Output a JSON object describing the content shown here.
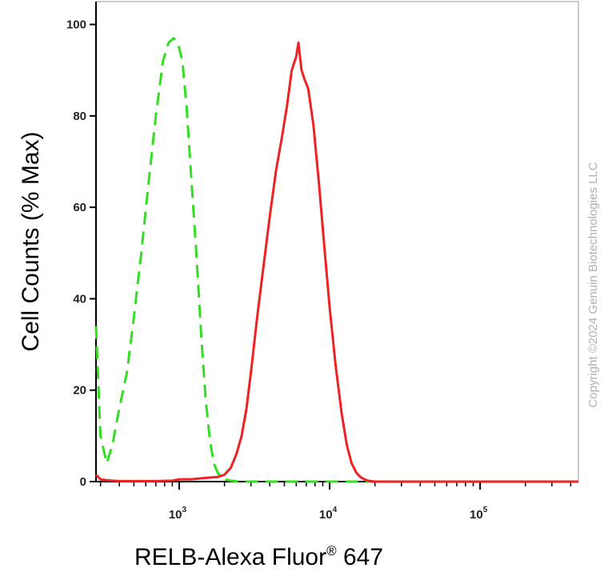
{
  "chart_data": {
    "type": "line",
    "xlabel": "RELB-Alexa Fluor",
    "xlabel_superscript": "®",
    "xlabel_suffix": " 647",
    "ylabel": "Cell Counts (% Max)",
    "x_scale": "log",
    "xlim": [
      280,
      450000
    ],
    "ylim": [
      0,
      105
    ],
    "y_ticks": [
      "0",
      "20",
      "40",
      "60",
      "80",
      "100"
    ],
    "x_ticks": [
      {
        "base": "10",
        "exp": "3",
        "value": 1000
      },
      {
        "base": "10",
        "exp": "4",
        "value": 10000
      },
      {
        "base": "10",
        "exp": "5",
        "value": 100000
      }
    ],
    "grid": false,
    "copyright": "Copyright ©2024 Genuin Biotechnologies LLC",
    "series": [
      {
        "color": "#33dd22",
        "style": "dashed",
        "x": [
          280,
          300,
          330,
          360,
          400,
          450,
          500,
          560,
          620,
          700,
          780,
          850,
          920,
          980,
          1050,
          1120,
          1200,
          1300,
          1400,
          1500,
          1600,
          1700,
          1800,
          1900,
          2000,
          2200,
          2500,
          3000,
          5000,
          10000,
          20000,
          50000,
          100000,
          450000
        ],
        "y": [
          34,
          10,
          4,
          8,
          16,
          24,
          36,
          50,
          64,
          80,
          92,
          96,
          97,
          96,
          92,
          82,
          67,
          50,
          32,
          18,
          9,
          4,
          2,
          1,
          0.5,
          0.2,
          0,
          0,
          0,
          0,
          0,
          0,
          0,
          0
        ]
      },
      {
        "color": "#ee2222",
        "style": "solid",
        "x": [
          280,
          300,
          330,
          360,
          400,
          500,
          700,
          900,
          1000,
          1200,
          1500,
          1800,
          2000,
          2200,
          2400,
          2600,
          2800,
          3000,
          3300,
          3600,
          4000,
          4400,
          4800,
          5200,
          5600,
          6000,
          6200,
          6500,
          6800,
          7200,
          7800,
          8500,
          9300,
          10000,
          11000,
          12000,
          13000,
          14000,
          15000,
          16000,
          17000,
          18000,
          20000,
          25000,
          50000,
          100000,
          450000
        ],
        "y": [
          1.5,
          0.5,
          0.3,
          0.2,
          0.1,
          0.1,
          0.1,
          0.2,
          0.5,
          0.5,
          0.8,
          1,
          1.5,
          3,
          6,
          10,
          16,
          24,
          36,
          46,
          58,
          68,
          75,
          82,
          90,
          93,
          96,
          90,
          88,
          86,
          78,
          65,
          50,
          38,
          25,
          15,
          8,
          4,
          2,
          1,
          0.5,
          0.2,
          0,
          0,
          0,
          0,
          0
        ]
      }
    ]
  }
}
